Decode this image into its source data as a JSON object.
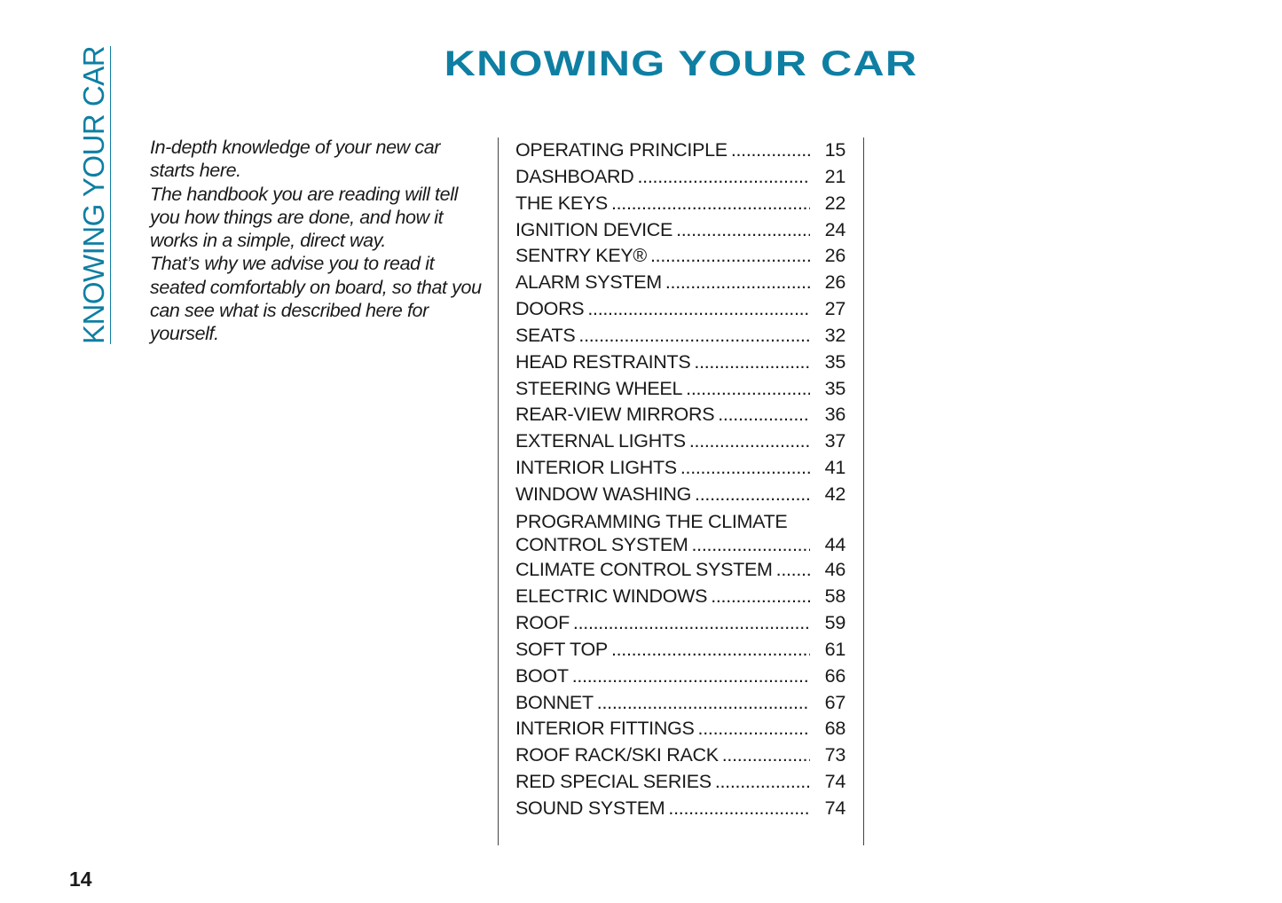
{
  "side_tab": "KNOWING YOUR CAR",
  "title": "KNOWING YOUR CAR",
  "accent_color": "#0e7fa3",
  "intro": [
    "In-depth knowledge of your new car starts here.",
    "The handbook you are reading will tell you how things are done, and how it works in a simple, direct way.",
    "That’s why we advise you to read it seated comfortably on board, so that you can see what is described here for yourself."
  ],
  "toc": [
    {
      "label": "OPERATING PRINCIPLE",
      "page": "15"
    },
    {
      "label": "DASHBOARD",
      "page": "21"
    },
    {
      "label": "THE KEYS",
      "page": "22"
    },
    {
      "label": "IGNITION DEVICE",
      "page": "24"
    },
    {
      "label": "SENTRY KEY®",
      "page": "26"
    },
    {
      "label": "ALARM SYSTEM",
      "page": "26"
    },
    {
      "label": "DOORS",
      "page": "27"
    },
    {
      "label": "SEATS",
      "page": "32"
    },
    {
      "label": "HEAD RESTRAINTS",
      "page": "35"
    },
    {
      "label": "STEERING WHEEL",
      "page": "35"
    },
    {
      "label": "REAR-VIEW MIRRORS",
      "page": "36"
    },
    {
      "label": "EXTERNAL LIGHTS",
      "page": "37"
    },
    {
      "label": "INTERIOR LIGHTS",
      "page": "41"
    },
    {
      "label": "WINDOW WASHING",
      "page": "42"
    },
    {
      "label": "PROGRAMMING THE CLIMATE",
      "label_line2": "CONTROL SYSTEM",
      "page": "44"
    },
    {
      "label": "CLIMATE CONTROL SYSTEM",
      "page": "46"
    },
    {
      "label": "ELECTRIC WINDOWS",
      "page": "58"
    },
    {
      "label": "ROOF",
      "page": "59"
    },
    {
      "label": "SOFT TOP",
      "page": "61"
    },
    {
      "label": "BOOT",
      "page": "66"
    },
    {
      "label": "BONNET",
      "page": "67"
    },
    {
      "label": "INTERIOR FITTINGS",
      "page": "68"
    },
    {
      "label": "ROOF RACK/SKI RACK",
      "page": "73"
    },
    {
      "label": "RED SPECIAL SERIES",
      "page": "74"
    },
    {
      "label": "SOUND SYSTEM",
      "page": "74"
    }
  ],
  "page_number": "14"
}
